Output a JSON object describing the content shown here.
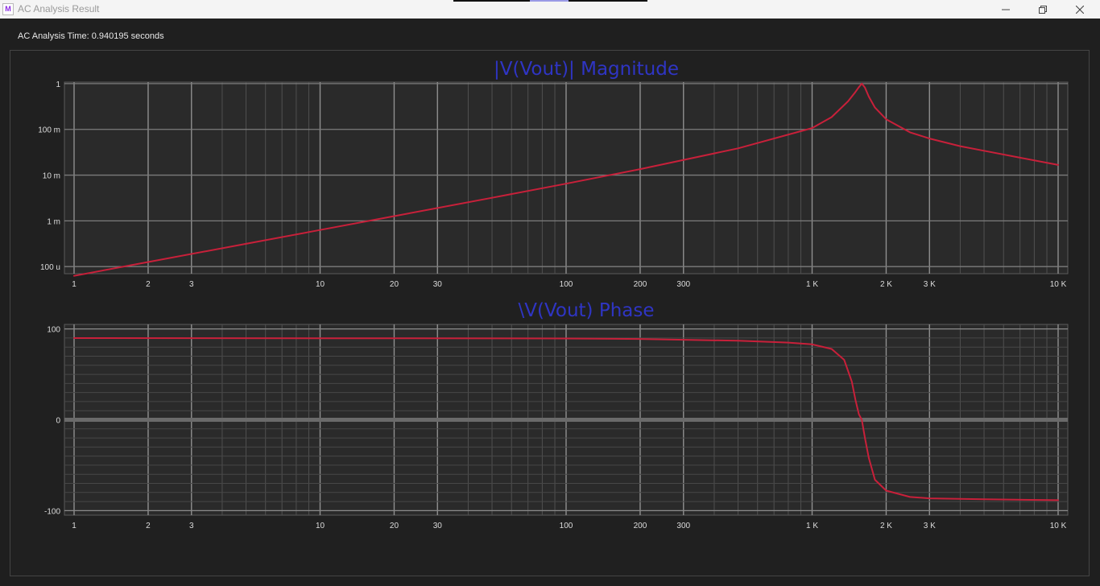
{
  "window": {
    "title": "AC Analysis Result",
    "icon": "app-logo-icon",
    "controls": [
      "minimize-icon",
      "restore-icon",
      "close-icon"
    ]
  },
  "status": {
    "analysis_time": "AC Analysis Time: 0.940195 seconds"
  },
  "colors": {
    "trace": "#c8203a",
    "title": "#2f35c4",
    "plot_bg": "#2a2a2a",
    "panel_bg": "#202020"
  },
  "chart_data": [
    {
      "type": "line",
      "title": "|V(Vout)| Magnitude",
      "xscale": "log",
      "yscale": "log",
      "xlim": [
        1,
        10000
      ],
      "ylim": [
        7e-05,
        1.08
      ],
      "grid": true,
      "x_ticks": [
        1,
        2,
        3,
        10,
        20,
        30,
        100,
        200,
        300,
        1000,
        2000,
        3000,
        10000
      ],
      "x_tick_labels": [
        "1",
        "2",
        "3",
        "10",
        "20",
        "30",
        "100",
        "200",
        "300",
        "1 K",
        "2 K",
        "3 K",
        "10 K"
      ],
      "y_ticks": [
        1,
        0.1,
        0.01,
        0.001,
        0.0001
      ],
      "y_tick_labels": [
        "1",
        "100 m",
        "10 m",
        "1 m",
        "100 u"
      ],
      "series": [
        {
          "x": [
            1,
            2,
            5,
            10,
            20,
            50,
            100,
            200,
            500,
            1000,
            1200,
            1400,
            1500,
            1550,
            1592,
            1640,
            1700,
            1800,
            2000,
            2500,
            3000,
            4000,
            5000,
            7000,
            10000
          ],
          "y": [
            6.28e-05,
            0.000126,
            0.000315,
            0.000632,
            0.00127,
            0.0032,
            0.0065,
            0.0135,
            0.0385,
            0.107,
            0.185,
            0.41,
            0.66,
            0.84,
            1.0,
            0.82,
            0.52,
            0.3,
            0.166,
            0.086,
            0.063,
            0.043,
            0.034,
            0.024,
            0.0167
          ]
        }
      ]
    },
    {
      "type": "line",
      "title": "\\V(Vout) Phase",
      "xscale": "log",
      "yscale": "linear",
      "xlim": [
        1,
        10000
      ],
      "ylim": [
        -105,
        105
      ],
      "grid": true,
      "x_ticks": [
        1,
        2,
        3,
        10,
        20,
        30,
        100,
        200,
        300,
        1000,
        2000,
        3000,
        10000
      ],
      "x_tick_labels": [
        "1",
        "2",
        "3",
        "10",
        "20",
        "30",
        "100",
        "200",
        "300",
        "1 K",
        "2 K",
        "3 K",
        "10 K"
      ],
      "y_ticks": [
        100,
        0,
        -100
      ],
      "y_tick_labels": [
        "100",
        "0",
        "-100"
      ],
      "series": [
        {
          "x": [
            1,
            10,
            100,
            200,
            500,
            800,
            1000,
            1200,
            1350,
            1450,
            1500,
            1550,
            1592,
            1640,
            1700,
            1800,
            2000,
            2500,
            3000,
            5000,
            10000
          ],
          "y": [
            89.9,
            89.8,
            89.5,
            89,
            87,
            85,
            83,
            78,
            66,
            42,
            22,
            6,
            0,
            -20,
            -42,
            -66,
            -78,
            -85,
            -86.5,
            -87.5,
            -88.5
          ]
        }
      ]
    }
  ]
}
